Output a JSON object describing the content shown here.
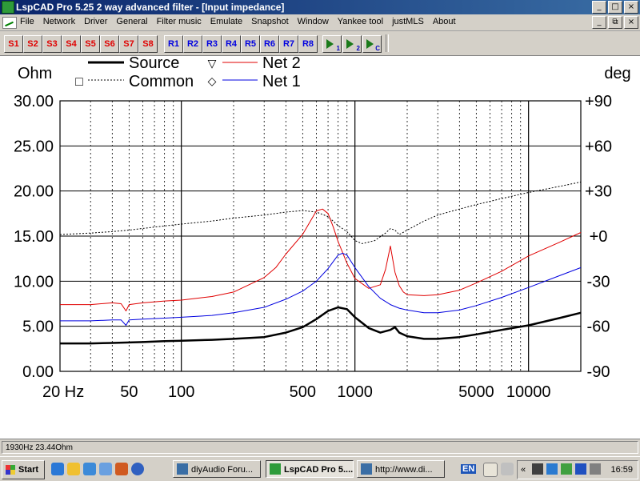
{
  "window": {
    "title": "LspCAD Pro 5.25 2 way advanced filter - [Input impedance]",
    "min_glyph": "_",
    "max_glyph": "□",
    "close_glyph": "×",
    "restore_glyph": "⧉"
  },
  "menu": {
    "items": [
      "File",
      "Network",
      "Driver",
      "General",
      "Filter music",
      "Emulate",
      "Snapshot",
      "Window",
      "Yankee tool",
      "justMLS",
      "About"
    ]
  },
  "toolbar": {
    "s_buttons": [
      "S1",
      "S2",
      "S3",
      "S4",
      "S5",
      "S6",
      "S7",
      "S8"
    ],
    "r_buttons": [
      "R1",
      "R2",
      "R3",
      "R4",
      "R5",
      "R6",
      "R7",
      "R8"
    ],
    "tool_icons": [
      {
        "name": "play-1-icon",
        "sub": "1"
      },
      {
        "name": "play-2-icon",
        "sub": "2"
      },
      {
        "name": "play-c-icon",
        "sub": "C"
      }
    ],
    "s_color": "#e00000",
    "r_color": "#0000e0"
  },
  "chart_data": {
    "type": "line",
    "x_scale": "log",
    "xlim": [
      20,
      20000
    ],
    "ylabel_left": "Ohm",
    "ylabel_right": "deg",
    "ylim_left": [
      0,
      30
    ],
    "ylim_right": [
      -90,
      90
    ],
    "yticks_left": [
      "30.00",
      "25.00",
      "20.00",
      "15.00",
      "10.00",
      "5.00",
      "0.00"
    ],
    "yticks_right": [
      "+90",
      "+60",
      "+30",
      "+0",
      "-30",
      "-60",
      "-90"
    ],
    "xtick_labels": [
      {
        "v": 20,
        "t": "20 Hz"
      },
      {
        "v": 50,
        "t": "50"
      },
      {
        "v": 100,
        "t": "100"
      },
      {
        "v": 500,
        "t": "500"
      },
      {
        "v": 1000,
        "t": "1000"
      },
      {
        "v": 5000,
        "t": "5000"
      },
      {
        "v": 10000,
        "t": "10000"
      }
    ],
    "legend": [
      {
        "name": "Source",
        "color": "#000000",
        "style": "thick",
        "marker": "▽"
      },
      {
        "name": "Common",
        "color": "#000000",
        "style": "dotted",
        "marker": "□"
      },
      {
        "name": "Net 2",
        "color": "#e00000",
        "style": "solid",
        "marker": "▽"
      },
      {
        "name": "Net 1",
        "color": "#0000e0",
        "style": "solid",
        "marker": "◇"
      }
    ],
    "series": [
      {
        "name": "Source",
        "color": "#000000",
        "axis": "left",
        "x": [
          20,
          30,
          40,
          50,
          60,
          80,
          100,
          150,
          200,
          300,
          400,
          500,
          600,
          700,
          800,
          900,
          1000,
          1200,
          1400,
          1600,
          1700,
          1800,
          2000,
          2500,
          3000,
          4000,
          5000,
          7000,
          10000,
          15000,
          20000
        ],
        "y": [
          3.1,
          3.1,
          3.15,
          3.2,
          3.25,
          3.35,
          3.4,
          3.5,
          3.6,
          3.8,
          4.3,
          4.9,
          5.8,
          6.7,
          7.1,
          6.9,
          6.0,
          4.8,
          4.3,
          4.6,
          4.9,
          4.3,
          3.9,
          3.6,
          3.6,
          3.8,
          4.1,
          4.6,
          5.1,
          5.9,
          6.5
        ]
      },
      {
        "name": "Common",
        "color": "#000000",
        "axis": "right",
        "x": [
          20,
          30,
          40,
          50,
          70,
          100,
          150,
          200,
          300,
          400,
          500,
          600,
          700,
          800,
          900,
          1000,
          1100,
          1300,
          1500,
          1600,
          1700,
          1800,
          2000,
          2500,
          3000,
          4000,
          5000,
          7000,
          10000,
          15000,
          20000
        ],
        "y": [
          1,
          2,
          3,
          4,
          6,
          8,
          10,
          12,
          14,
          16,
          17,
          16,
          13,
          7,
          3,
          -3,
          -5,
          -3,
          2,
          5,
          4,
          1,
          4,
          10,
          14,
          18,
          21,
          25,
          29,
          33,
          36
        ]
      },
      {
        "name": "Net 2",
        "color": "#e00000",
        "axis": "left",
        "x": [
          20,
          30,
          40,
          45,
          48,
          50,
          60,
          80,
          100,
          150,
          200,
          300,
          350,
          400,
          500,
          600,
          650,
          700,
          750,
          800,
          900,
          1000,
          1200,
          1400,
          1500,
          1600,
          1700,
          1800,
          1900,
          2000,
          2500,
          3000,
          4000,
          5000,
          7000,
          10000,
          15000,
          20000
        ],
        "y": [
          7.4,
          7.4,
          7.6,
          7.5,
          6.7,
          7.4,
          7.6,
          7.8,
          7.9,
          8.3,
          8.8,
          10.4,
          11.5,
          13.0,
          15.2,
          17.8,
          18.0,
          17.5,
          16.0,
          14.4,
          12.0,
          10.3,
          9.2,
          9.6,
          11.3,
          13.9,
          11.0,
          9.5,
          8.8,
          8.5,
          8.4,
          8.5,
          9.0,
          9.8,
          11.1,
          12.8,
          14.3,
          15.4
        ]
      },
      {
        "name": "Net 1",
        "color": "#0000e0",
        "axis": "left",
        "x": [
          20,
          30,
          40,
          45,
          48,
          50,
          60,
          80,
          100,
          150,
          200,
          300,
          400,
          500,
          600,
          700,
          800,
          850,
          900,
          1000,
          1200,
          1400,
          1600,
          1800,
          2000,
          2500,
          3000,
          4000,
          5000,
          7000,
          10000,
          15000,
          20000
        ],
        "y": [
          5.6,
          5.6,
          5.7,
          5.7,
          5.1,
          5.7,
          5.8,
          5.9,
          6.0,
          6.2,
          6.5,
          7.1,
          8.0,
          8.9,
          10.0,
          11.4,
          12.9,
          13.1,
          12.9,
          11.5,
          9.4,
          8.1,
          7.4,
          7.0,
          6.8,
          6.5,
          6.5,
          6.8,
          7.3,
          8.2,
          9.3,
          10.6,
          11.5
        ]
      }
    ]
  },
  "statusbar": {
    "text": "1930Hz 23.44Ohm"
  },
  "taskbar": {
    "start_label": "Start",
    "tasks": [
      {
        "label": "diyAudio Foru...",
        "active": false
      },
      {
        "label": "LspCAD Pro 5....",
        "active": true
      },
      {
        "label": "http://www.di...",
        "active": false
      }
    ],
    "language": "EN",
    "chevrons": "«",
    "clock": "16:59"
  }
}
